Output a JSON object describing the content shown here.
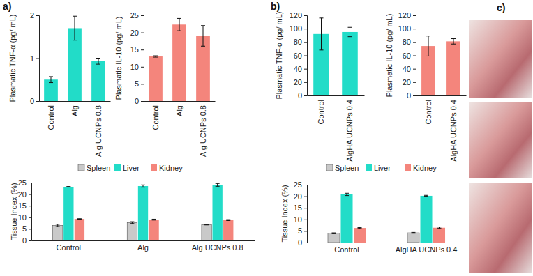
{
  "panel_labels": [
    "a)",
    "b)",
    "c)"
  ],
  "chart_data": [
    {
      "type": "bar",
      "y_label": "Plasmatic TNF-α (pg/ mL)",
      "categories": [
        "Control",
        "Alg",
        "Alg UCNPs 0.8"
      ],
      "values": [
        0.5,
        1.7,
        0.93
      ],
      "errors": [
        0.07,
        0.28,
        0.07
      ],
      "color": "#22dcc8",
      "ylim": [
        0,
        2
      ],
      "yticks": [
        0,
        1,
        2
      ]
    },
    {
      "type": "bar",
      "y_label": "Plasmatic IL-10 (pg/ mL)",
      "categories": [
        "Control",
        "Alg",
        "Alg UCNPs 0.8"
      ],
      "values": [
        13,
        22.3,
        19
      ],
      "errors": [
        0.2,
        1.8,
        3
      ],
      "color": "#f4857c",
      "ylim": [
        0,
        25
      ],
      "yticks": [
        0,
        5,
        10,
        15,
        20,
        25
      ]
    },
    {
      "type": "bar",
      "y_label": "Tissue Index (%)",
      "categories": [
        "Control",
        "Alg",
        "Alg UCNPs 0.8"
      ],
      "series": [
        {
          "name": "Spleen",
          "color": "#c9c9c9",
          "values": [
            6.5,
            7.7,
            6.8
          ],
          "errors": [
            0.5,
            0.4,
            0.1
          ]
        },
        {
          "name": "Liver",
          "color": "#22dcc8",
          "values": [
            23.2,
            23.5,
            24
          ],
          "errors": [
            0.1,
            0.5,
            0.6
          ]
        },
        {
          "name": "Kidney",
          "color": "#f4857c",
          "values": [
            9.3,
            9.0,
            8.8
          ],
          "errors": [
            0.1,
            0.2,
            0.2
          ]
        }
      ],
      "legend": "top",
      "ylim": [
        0,
        25
      ],
      "yticks": [
        0,
        5,
        10,
        15,
        20,
        25
      ]
    },
    {
      "type": "bar",
      "y_label": "Plasmatic TNF-α (pg/ mL)",
      "categories": [
        "Control",
        "AlgHA UCNPs 0.4"
      ],
      "values": [
        92,
        95
      ],
      "errors": [
        24,
        7
      ],
      "color": "#22dcc8",
      "ylim": [
        0,
        120
      ],
      "yticks": [
        0,
        20,
        40,
        60,
        80,
        100,
        120
      ]
    },
    {
      "type": "bar",
      "y_label": "Plasmatic IL-10 (pg/ mL)",
      "categories": [
        "Control",
        "AlgHA UCNPs 0.4"
      ],
      "values": [
        74,
        81
      ],
      "errors": [
        15,
        4
      ],
      "color": "#f4857c",
      "ylim": [
        0,
        120
      ],
      "yticks": [
        0,
        20,
        40,
        60,
        80,
        100,
        120
      ]
    },
    {
      "type": "bar",
      "y_label": "Tissue Index (%)",
      "categories": [
        "Control",
        "AlgHA UCNPs 0.4"
      ],
      "series": [
        {
          "name": "Spleen",
          "color": "#c9c9c9",
          "values": [
            4.0,
            4.2
          ],
          "errors": [
            0.2,
            0.2
          ]
        },
        {
          "name": "Liver",
          "color": "#22dcc8",
          "values": [
            20.8,
            20.2
          ],
          "errors": [
            0.5,
            0.2
          ]
        },
        {
          "name": "Kidney",
          "color": "#f4857c",
          "values": [
            6.3,
            6.4
          ],
          "errors": [
            0.2,
            0.3
          ]
        }
      ],
      "legend": "top",
      "ylim": [
        0,
        25
      ],
      "yticks": [
        0,
        5,
        10,
        15,
        20,
        25
      ]
    }
  ]
}
